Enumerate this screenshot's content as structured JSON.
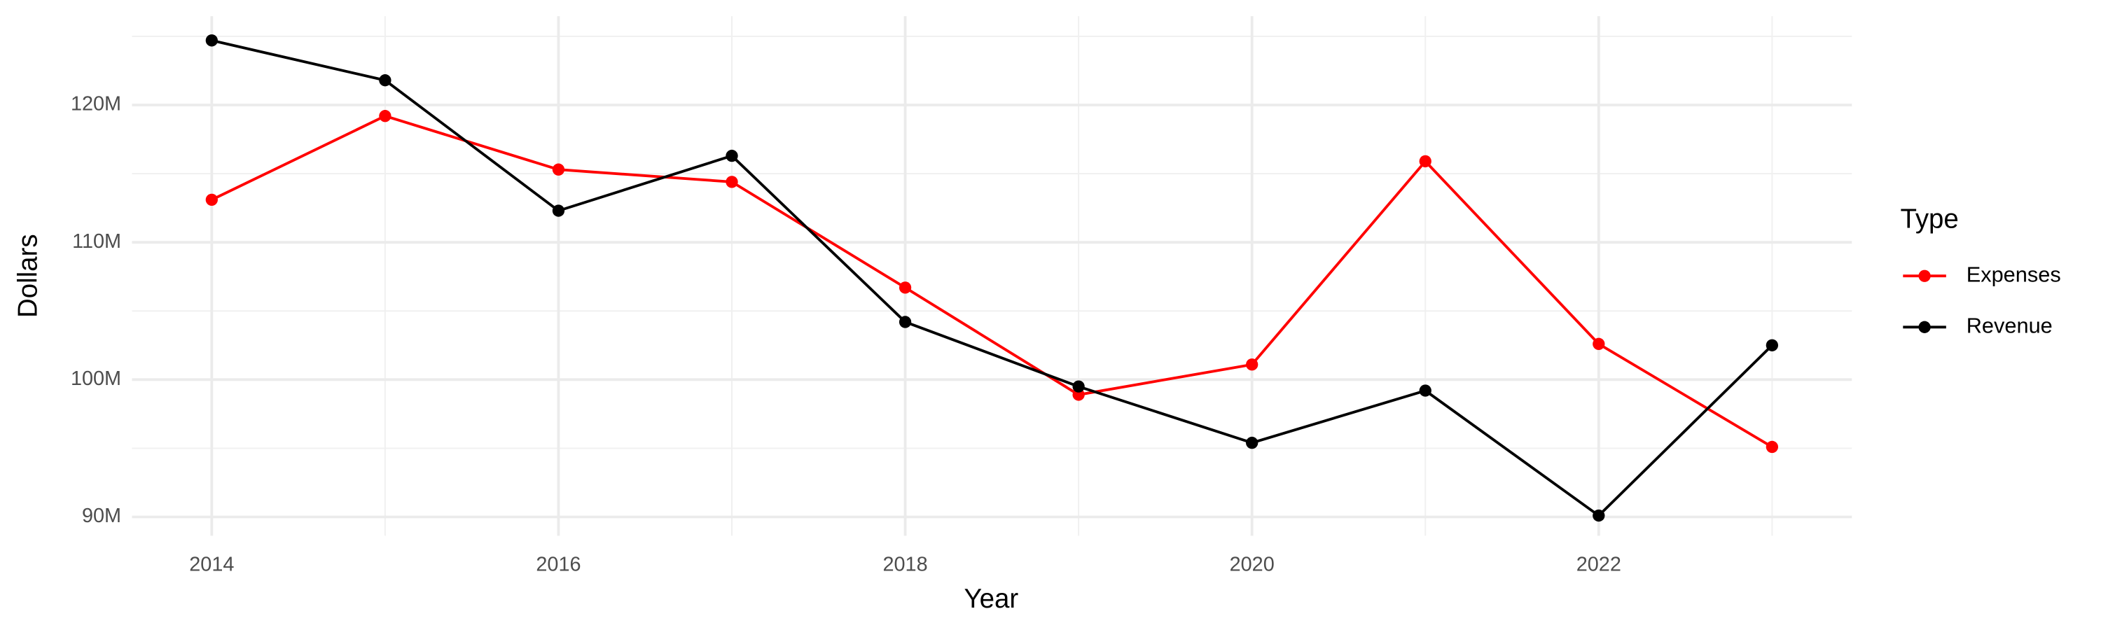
{
  "chart_data": {
    "type": "line",
    "x_label": "Year",
    "y_label": "Dollars",
    "x": [
      2014,
      2015,
      2016,
      2017,
      2018,
      2019,
      2020,
      2021,
      2022,
      2023
    ],
    "series": [
      {
        "name": "Expenses",
        "color": "#ff0000",
        "values": [
          113100000,
          119200000,
          115300000,
          114400000,
          106700000,
          98900000,
          101100000,
          115900000,
          102600000,
          95100000
        ]
      },
      {
        "name": "Revenue",
        "color": "#000000",
        "values": [
          124700000,
          121800000,
          112300000,
          116300000,
          104200000,
          99500000,
          95400000,
          99200000,
          90100000,
          102500000
        ]
      }
    ],
    "xlim": [
      2013.54,
      2023.46
    ],
    "xticks": [
      2014,
      2016,
      2018,
      2020,
      2022
    ],
    "minor_xticks": [
      2015,
      2017,
      2019,
      2021,
      2023
    ],
    "ylim": [
      88630000,
      126470000
    ],
    "yticks": [
      {
        "value": 90000000,
        "label": "90M"
      },
      {
        "value": 100000000,
        "label": "100M"
      },
      {
        "value": 110000000,
        "label": "110M"
      },
      {
        "value": 120000000,
        "label": "120M"
      }
    ],
    "minor_yticks": [
      95000000,
      105000000,
      115000000,
      125000000
    ],
    "grid": true,
    "legend_title": "Type",
    "legend_position": "right"
  }
}
